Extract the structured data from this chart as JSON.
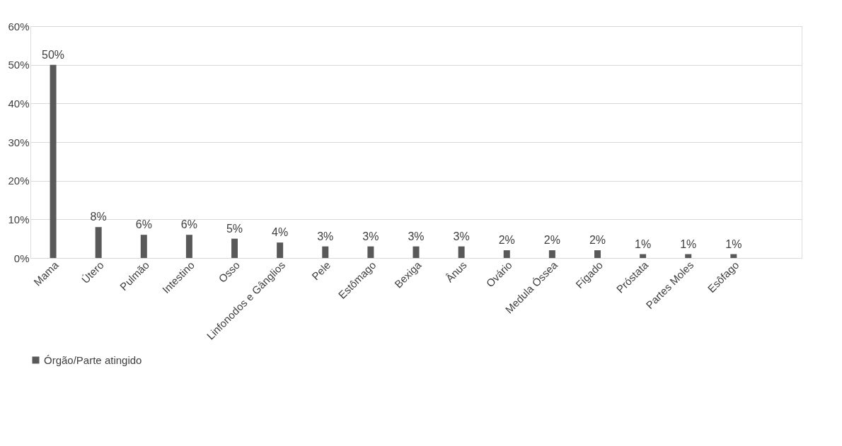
{
  "chart_data": {
    "type": "bar",
    "categories": [
      "Mama",
      "Útero",
      "Pulmão",
      "Intestino",
      "Osso",
      "Linfonodos e Gânglios",
      "Pele",
      "Estômago",
      "Bexiga",
      "Ânus",
      "Ovário",
      "Medula Óssea",
      "Fígado",
      "Próstata",
      "Partes Moles",
      "Esôfago",
      null
    ],
    "series": [
      {
        "name": "Órgão/Parte atingido",
        "color": "#595959",
        "values": [
          50,
          8,
          6,
          6,
          5,
          4,
          3,
          3,
          3,
          3,
          2,
          2,
          2,
          1,
          1,
          1,
          null
        ],
        "value_labels": [
          "50%",
          "8%",
          "6%",
          "6%",
          "5%",
          "4%",
          "3%",
          "3%",
          "3%",
          "3%",
          "2%",
          "2%",
          "2%",
          "1%",
          "1%",
          "1%",
          null
        ]
      }
    ],
    "ylim": [
      0,
      60
    ],
    "yticks": [
      {
        "value": 0,
        "label": "0%"
      },
      {
        "value": 10,
        "label": "10%"
      },
      {
        "value": 20,
        "label": "20%"
      },
      {
        "value": 30,
        "label": "30%"
      },
      {
        "value": 40,
        "label": "40%"
      },
      {
        "value": 50,
        "label": "50%"
      },
      {
        "value": 60,
        "label": "60%"
      }
    ],
    "grid": "y",
    "legend": "bottom"
  }
}
